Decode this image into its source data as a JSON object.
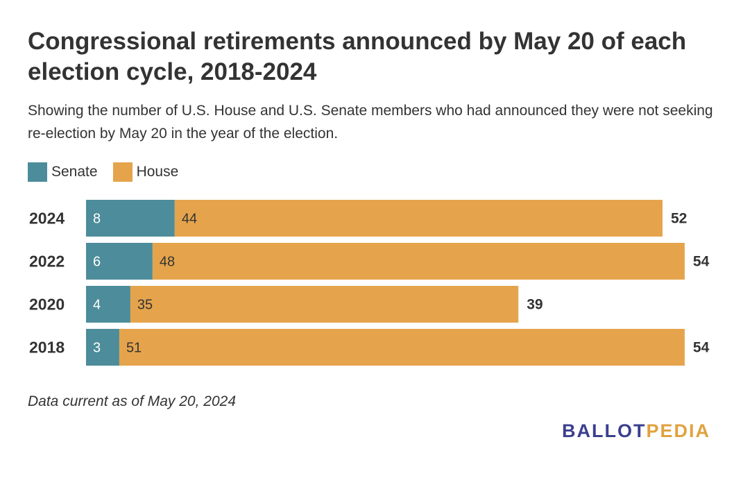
{
  "title": "Congressional retirements announced by May 20 of each election cycle, 2018-2024",
  "subtitle": "Showing the number of U.S. House and U.S. Senate members who had announced they were not seeking re-election by May 20 in the year of the election.",
  "legend": [
    {
      "label": "Senate",
      "color": "#4d8c9a"
    },
    {
      "label": "House",
      "color": "#e5a44c"
    }
  ],
  "note": "Data current as of May 20, 2024",
  "logo": {
    "part1": "BALLOT",
    "part2": "PEDIA",
    "color1": "#3a3f8f",
    "color2": "#e0a23f"
  },
  "chart_data": {
    "type": "bar",
    "orientation": "horizontal",
    "stacked": true,
    "categories": [
      "2024",
      "2022",
      "2020",
      "2018"
    ],
    "series": [
      {
        "name": "Senate",
        "values": [
          8,
          6,
          4,
          3
        ],
        "color": "#4d8c9a"
      },
      {
        "name": "House",
        "values": [
          44,
          48,
          35,
          51
        ],
        "color": "#e5a44c"
      }
    ],
    "totals": [
      52,
      54,
      39,
      54
    ],
    "title": "Congressional retirements announced by May 20 of each election cycle, 2018-2024",
    "legend_position": "top-left",
    "grid": false
  }
}
